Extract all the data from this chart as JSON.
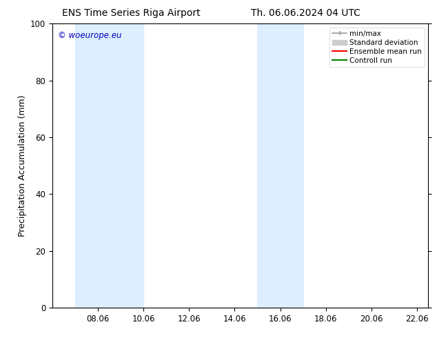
{
  "title_left": "ENS Time Series Riga Airport",
  "title_right": "Th. 06.06.2024 04 UTC",
  "ylabel": "Precipitation Accumulation (mm)",
  "watermark": "© woeurope.eu",
  "watermark_color": "#0000bb",
  "xlim_start": 6.0,
  "xlim_end": 22.5,
  "ylim": [
    0,
    100
  ],
  "xticks": [
    8.0,
    10.0,
    12.0,
    14.0,
    16.0,
    18.0,
    20.0,
    22.0
  ],
  "xtick_labels": [
    "08.06",
    "10.06",
    "12.06",
    "14.06",
    "16.06",
    "18.06",
    "20.06",
    "22.06"
  ],
  "yticks": [
    0,
    20,
    40,
    60,
    80,
    100
  ],
  "shaded_bands": [
    {
      "x_start": 7.0,
      "x_end": 10.0,
      "color": "#ddeeff"
    },
    {
      "x_start": 15.0,
      "x_end": 17.0,
      "color": "#ddeeff"
    }
  ],
  "legend_entries": [
    {
      "label": "min/max",
      "type": "minmax"
    },
    {
      "label": "Standard deviation",
      "type": "stddev"
    },
    {
      "label": "Ensemble mean run",
      "type": "line",
      "color": "#ff0000"
    },
    {
      "label": "Controll run",
      "type": "line",
      "color": "#008000"
    }
  ],
  "bg_color": "#ffffff",
  "plot_bg_color": "#ffffff",
  "title_fontsize": 10,
  "ylabel_fontsize": 9,
  "tick_fontsize": 8.5,
  "legend_fontsize": 7.5,
  "watermark_fontsize": 8.5
}
